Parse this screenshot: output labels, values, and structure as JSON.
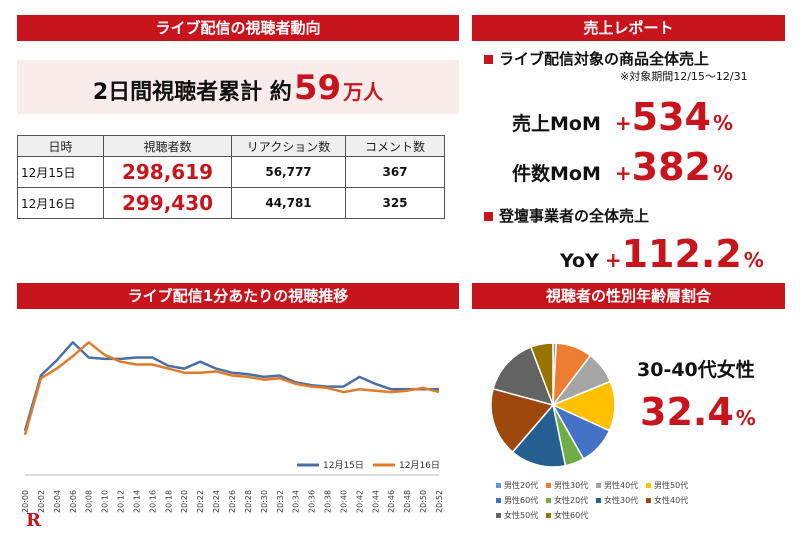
{
  "headers": {
    "viewers": "ライブ配信の視聴者動向",
    "sales": "売上レポート",
    "trend": "ライブ配信1分あたりの視聴推移",
    "demo": "視聴者の性別年齢層割合"
  },
  "total": {
    "label": "2日間視聴者累計 約",
    "number": "59",
    "unit": "万人"
  },
  "table": {
    "columns": [
      "日時",
      "視聴者数",
      "リアクション数",
      "コメント数"
    ],
    "rows": [
      [
        "12月15日",
        "298,619",
        "56,777",
        "367"
      ],
      [
        "12月16日",
        "299,430",
        "44,781",
        "325"
      ]
    ]
  },
  "sales": {
    "sub1": "ライブ配信対象の商品全体売上",
    "period": "※対象期間12/15～12/31",
    "kpi1": {
      "label": "売上MoM",
      "plus": "+",
      "value": "534",
      "pct": "%"
    },
    "kpi2": {
      "label": "件数MoM",
      "plus": "+",
      "value": "382",
      "pct": "%"
    },
    "sub2": "登壇事業者の全体売上",
    "kpi3": {
      "label": "YoY",
      "plus": "+",
      "value": "112.2",
      "pct": "%"
    }
  },
  "demo": {
    "label": "30-40代女性",
    "value": "32.4",
    "pct": "%"
  },
  "logo": "R",
  "chart_data": [
    {
      "type": "line",
      "x": [
        "20:00",
        "20:02",
        "20:04",
        "20:06",
        "20:08",
        "20:10",
        "20:12",
        "20:14",
        "20:16",
        "20:18",
        "20:20",
        "20:22",
        "20:24",
        "20:26",
        "20:28",
        "20:30",
        "20:32",
        "20:34",
        "20:36",
        "20:38",
        "20:40",
        "20:42",
        "20:44",
        "20:46",
        "20:48",
        "20:50",
        "20:52"
      ],
      "series": [
        {
          "name": "12月15日",
          "color": "#4a6fa5",
          "values": [
            3.2,
            7.2,
            8.3,
            9.6,
            8.5,
            8.4,
            8.4,
            8.5,
            8.5,
            7.9,
            7.7,
            8.2,
            7.7,
            7.4,
            7.3,
            7.1,
            7.2,
            6.7,
            6.5,
            6.4,
            6.4,
            7.1,
            6.6,
            6.2,
            6.2,
            6.2,
            6.2
          ]
        },
        {
          "name": "12月16日",
          "color": "#e07b2a",
          "values": [
            2.9,
            7.0,
            7.7,
            8.6,
            9.6,
            8.7,
            8.2,
            8.0,
            8.0,
            7.7,
            7.4,
            7.4,
            7.5,
            7.2,
            7.1,
            6.9,
            7.0,
            6.6,
            6.4,
            6.3,
            6.0,
            6.2,
            6.1,
            6.0,
            6.1,
            6.3,
            6.0
          ]
        }
      ],
      "ylim": [
        0,
        11
      ],
      "legend": "bottom-right"
    },
    {
      "type": "pie",
      "categories": [
        "男性20代",
        "男性30代",
        "男性40代",
        "男性50代",
        "男性60代",
        "女性20代",
        "女性30代",
        "女性40代",
        "女性50代",
        "女性60代"
      ],
      "values": [
        0.8,
        9.5,
        8.5,
        13.0,
        10.0,
        5.0,
        14.5,
        17.9,
        15.0,
        5.8
      ],
      "colors": [
        "#5b9bd5",
        "#ed7d31",
        "#a5a5a5",
        "#ffc000",
        "#4472c4",
        "#70ad47",
        "#255e91",
        "#9e480e",
        "#636363",
        "#997300"
      ],
      "legend": "bottom"
    }
  ]
}
